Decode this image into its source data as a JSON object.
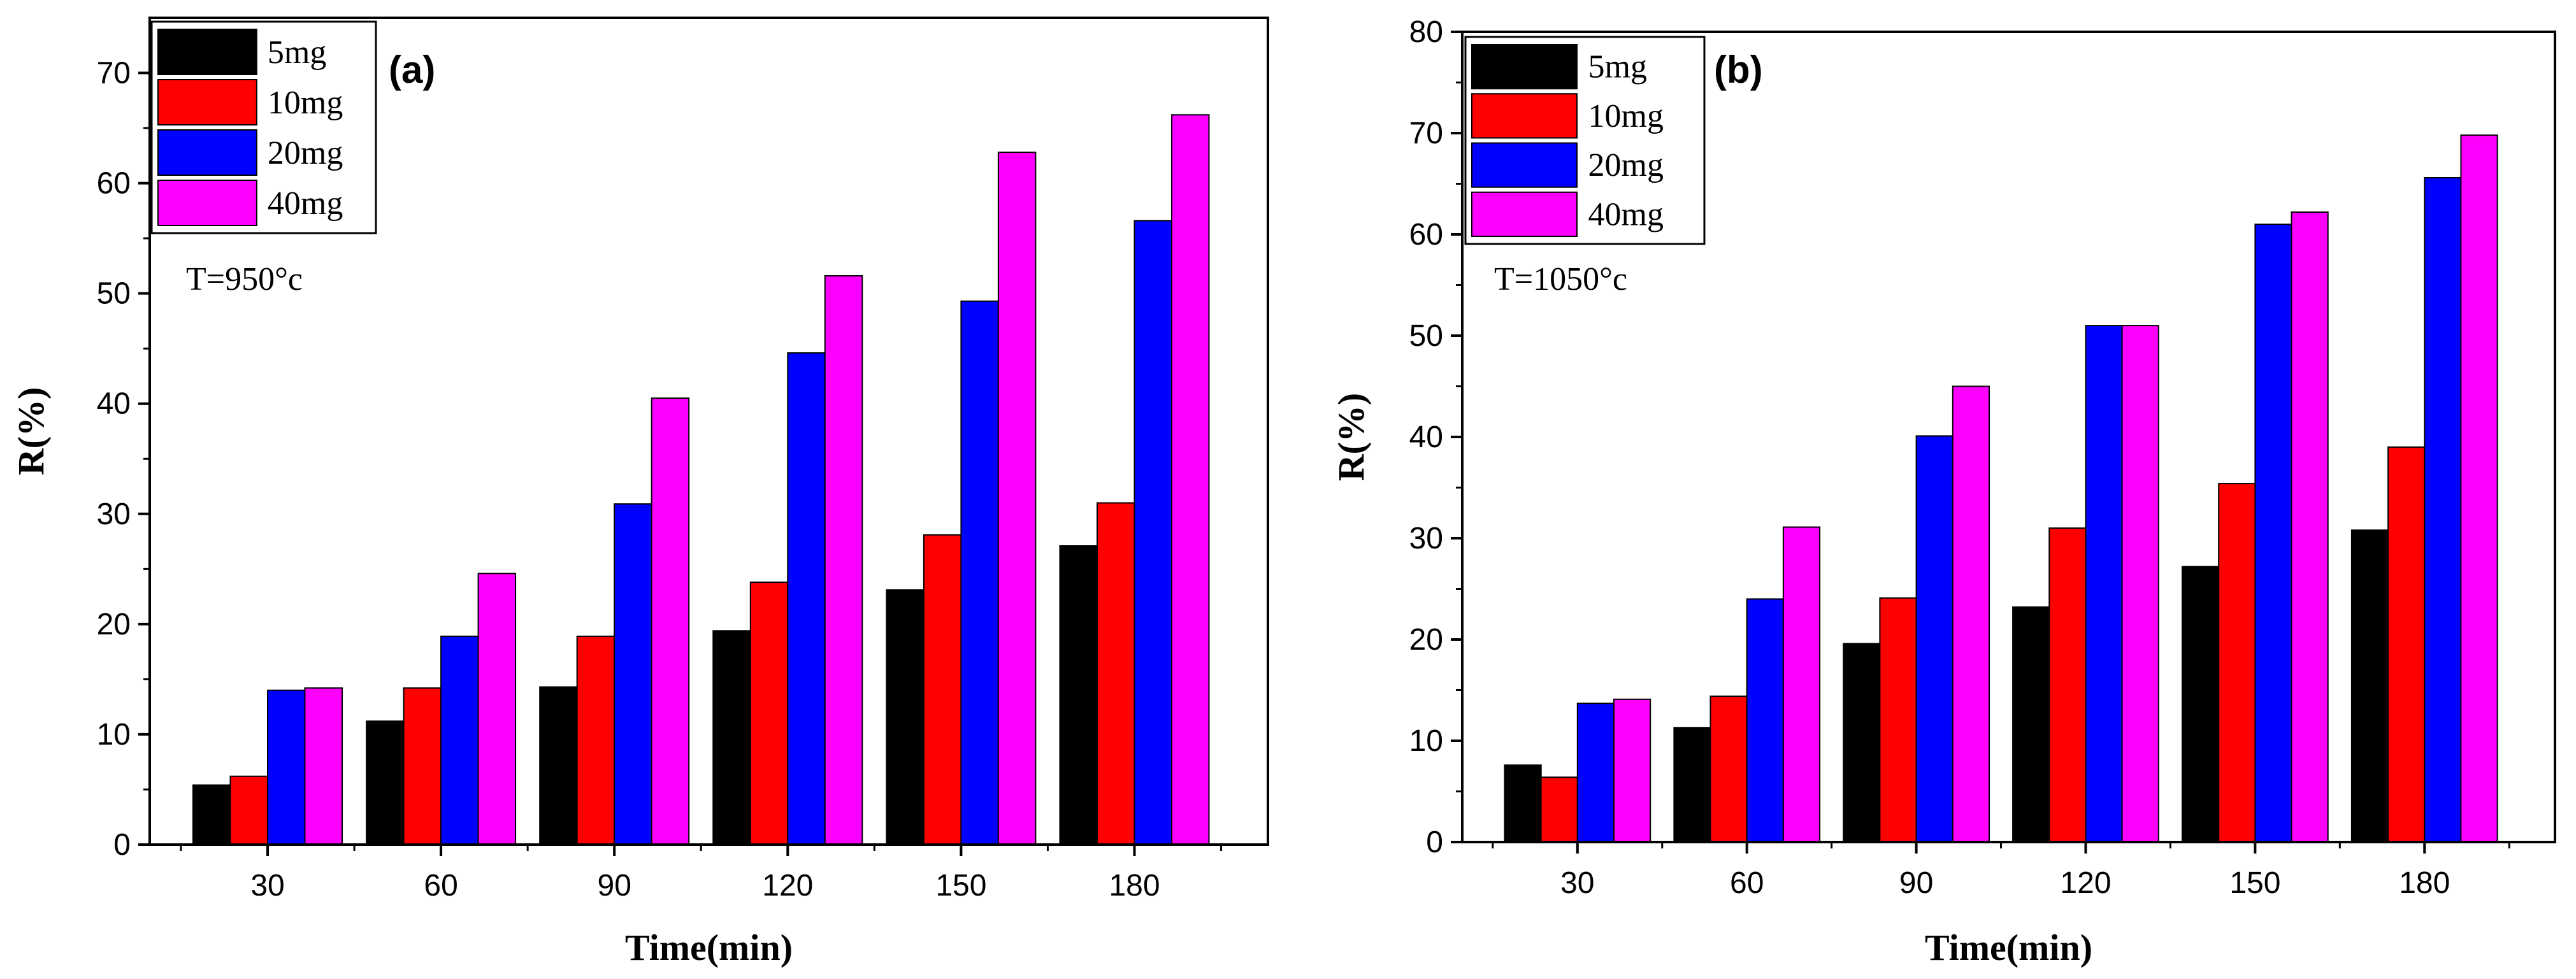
{
  "chart_data": [
    {
      "type": "bar",
      "panel_label": "(a)",
      "annotation": "T=950°c",
      "xlabel": "Time(min)",
      "ylabel": "R(%)",
      "ylim": [
        0,
        75
      ],
      "yticks": [
        0,
        10,
        20,
        30,
        40,
        50,
        60,
        70
      ],
      "categories": [
        "30",
        "60",
        "90",
        "120",
        "150",
        "180"
      ],
      "legend_position": "top-left",
      "series": [
        {
          "name": "5mg",
          "color": "#000000",
          "values": [
            5.4,
            11.2,
            14.3,
            19.4,
            23.1,
            27.1
          ]
        },
        {
          "name": "10mg",
          "color": "#ff0000",
          "values": [
            6.2,
            14.2,
            18.9,
            23.8,
            28.1,
            31.0
          ]
        },
        {
          "name": "20mg",
          "color": "#0000ff",
          "values": [
            14.0,
            18.9,
            30.9,
            44.6,
            49.3,
            56.6
          ]
        },
        {
          "name": "40mg",
          "color": "#ff00ff",
          "values": [
            14.2,
            24.6,
            40.5,
            51.6,
            62.8,
            66.2
          ]
        }
      ]
    },
    {
      "type": "bar",
      "panel_label": "(b)",
      "annotation": "T=1050°c",
      "xlabel": "Time(min)",
      "ylabel": "R(%)",
      "ylim": [
        0,
        80
      ],
      "yticks": [
        0,
        10,
        20,
        30,
        40,
        50,
        60,
        70,
        80
      ],
      "categories": [
        "30",
        "60",
        "90",
        "120",
        "150",
        "180"
      ],
      "legend_position": "top-left",
      "series": [
        {
          "name": "5mg",
          "color": "#000000",
          "values": [
            7.6,
            11.3,
            19.6,
            23.2,
            27.2,
            30.8
          ]
        },
        {
          "name": "10mg",
          "color": "#ff0000",
          "values": [
            6.4,
            14.4,
            24.1,
            31.0,
            35.4,
            39.0
          ]
        },
        {
          "name": "20mg",
          "color": "#0000ff",
          "values": [
            13.7,
            24.0,
            40.1,
            51.0,
            61.0,
            65.6
          ]
        },
        {
          "name": "40mg",
          "color": "#ff00ff",
          "values": [
            14.1,
            31.1,
            45.0,
            51.0,
            62.2,
            69.8
          ]
        }
      ]
    }
  ]
}
